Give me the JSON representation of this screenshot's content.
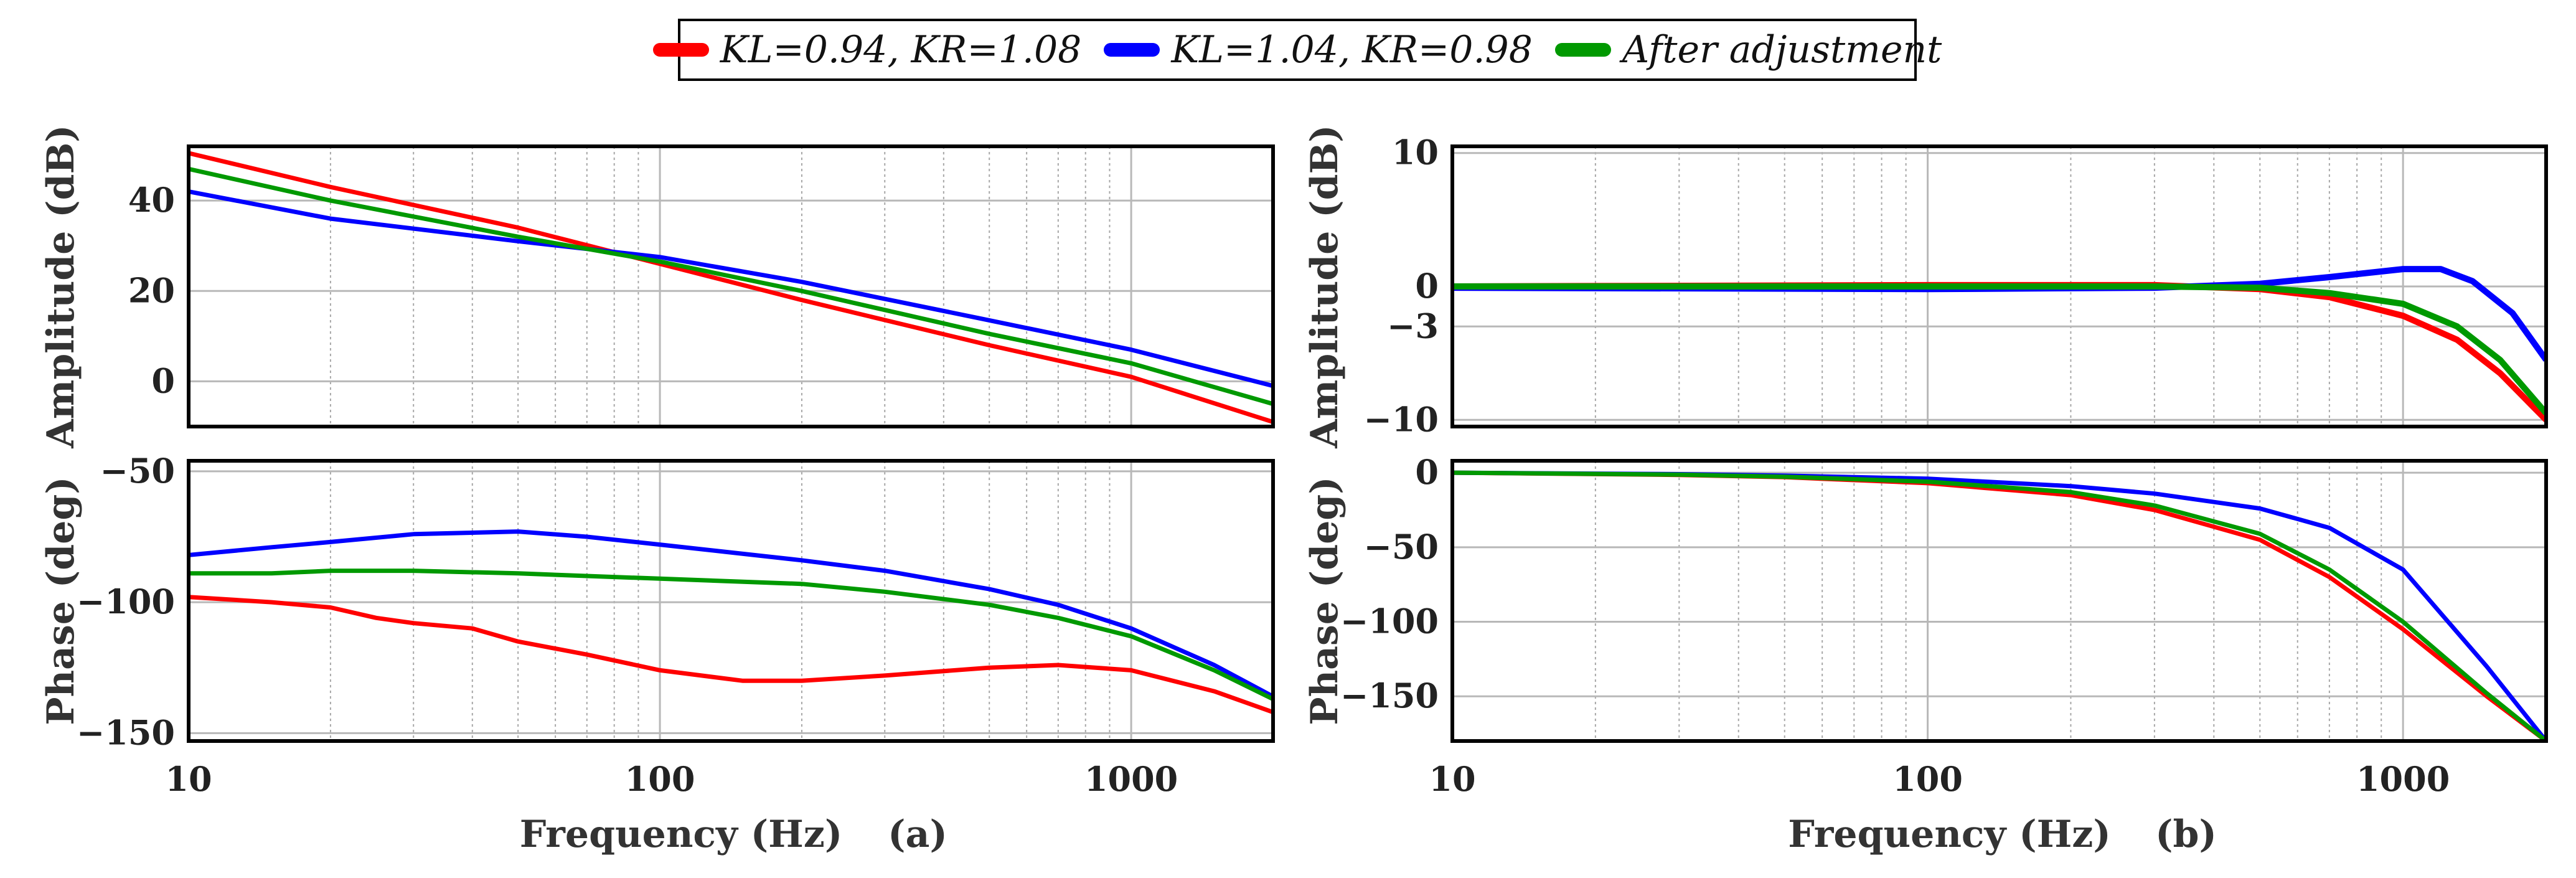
{
  "legend": {
    "items": [
      {
        "label": "KL=0.94, KR=1.08",
        "color": "#ff0000"
      },
      {
        "label": "KL=1.04, KR=0.98",
        "color": "#0000ff"
      },
      {
        "label": "After adjustment",
        "color": "#009900"
      }
    ]
  },
  "chart_data": [
    {
      "id": "a-amplitude",
      "type": "line",
      "panel": "(a)",
      "xscale": "log",
      "xlim": [
        10,
        2000
      ],
      "ylim": [
        -10,
        52
      ],
      "ylabel": "Amplitude (dB)",
      "yticks": [
        0,
        20,
        40
      ],
      "xticks": [
        10,
        100,
        1000
      ],
      "series": [
        {
          "name": "KL=0.94, KR=1.08",
          "color": "#ff0000",
          "x": [
            10,
            20,
            50,
            100,
            200,
            500,
            1000,
            2000
          ],
          "y": [
            50.5,
            43,
            34,
            26,
            18,
            8,
            1,
            -9
          ]
        },
        {
          "name": "KL=1.04, KR=0.98",
          "color": "#0000ff",
          "x": [
            10,
            20,
            50,
            100,
            200,
            500,
            1000,
            2000
          ],
          "y": [
            42,
            36,
            31,
            27.5,
            22,
            13.5,
            7,
            -1
          ]
        },
        {
          "name": "After adjustment",
          "color": "#009900",
          "x": [
            10,
            20,
            50,
            100,
            200,
            500,
            1000,
            2000
          ],
          "y": [
            47,
            40,
            32,
            26.5,
            20,
            10.5,
            4,
            -5
          ]
        }
      ]
    },
    {
      "id": "a-phase",
      "type": "line",
      "panel": "(a)",
      "xscale": "log",
      "xlim": [
        10,
        2000
      ],
      "ylim": [
        -153,
        -46
      ],
      "ylabel": "Phase (deg)",
      "yticks": [
        -150,
        -100,
        -50
      ],
      "xticks": [
        10,
        100,
        1000
      ],
      "xtick_labels": [
        "10",
        "100",
        "1000"
      ],
      "xlabel": "Frequency (Hz)",
      "series": [
        {
          "name": "KL=0.94, KR=1.08",
          "color": "#ff0000",
          "x": [
            10,
            15,
            20,
            25,
            30,
            40,
            50,
            70,
            100,
            150,
            200,
            300,
            500,
            700,
            1000,
            1500,
            2000
          ],
          "y": [
            -98,
            -100,
            -102,
            -106,
            -108,
            -110,
            -115,
            -120,
            -126,
            -130,
            -130,
            -128,
            -125,
            -124,
            -126,
            -134,
            -142
          ]
        },
        {
          "name": "KL=1.04, KR=0.98",
          "color": "#0000ff",
          "x": [
            10,
            15,
            20,
            30,
            50,
            70,
            100,
            200,
            300,
            500,
            700,
            1000,
            1500,
            2000
          ],
          "y": [
            -82,
            -79,
            -77,
            -74,
            -73,
            -75,
            -78,
            -84,
            -88,
            -95,
            -101,
            -110,
            -124,
            -136
          ]
        },
        {
          "name": "After adjustment",
          "color": "#009900",
          "x": [
            10,
            15,
            20,
            30,
            50,
            70,
            100,
            200,
            300,
            500,
            700,
            1000,
            1500,
            2000
          ],
          "y": [
            -89,
            -89,
            -88,
            -88,
            -89,
            -90,
            -91,
            -93,
            -96,
            -101,
            -106,
            -113,
            -126,
            -137
          ]
        }
      ]
    },
    {
      "id": "b-amplitude",
      "type": "line",
      "panel": "(b)",
      "xscale": "log",
      "xlim": [
        10,
        2000
      ],
      "ylim": [
        -10.5,
        10.5
      ],
      "ylabel": "Amplitude (dB)",
      "yticks": [
        -10,
        -3,
        0,
        10
      ],
      "xticks": [
        10,
        100,
        1000
      ],
      "series": [
        {
          "name": "KL=0.94, KR=1.08",
          "color": "#ff0000",
          "x": [
            10,
            100,
            300,
            500,
            700,
            1000,
            1300,
            1600,
            2000
          ],
          "y": [
            0,
            0.1,
            0.1,
            -0.2,
            -0.8,
            -2.2,
            -4,
            -6.5,
            -10
          ]
        },
        {
          "name": "KL=1.04, KR=0.98",
          "color": "#0000ff",
          "x": [
            10,
            100,
            300,
            500,
            700,
            1000,
            1200,
            1400,
            1700,
            2000
          ],
          "y": [
            -0.1,
            -0.2,
            -0.1,
            0.2,
            0.7,
            1.3,
            1.3,
            0.4,
            -2,
            -5.5
          ]
        },
        {
          "name": "After adjustment",
          "color": "#009900",
          "x": [
            10,
            100,
            300,
            500,
            700,
            1000,
            1300,
            1600,
            2000
          ],
          "y": [
            0,
            0,
            0,
            -0.1,
            -0.5,
            -1.3,
            -3,
            -5.5,
            -9.5
          ]
        }
      ]
    },
    {
      "id": "b-phase",
      "type": "line",
      "panel": "(b)",
      "xscale": "log",
      "xlim": [
        10,
        2000
      ],
      "ylim": [
        -180,
        8
      ],
      "ylabel": "Phase (deg)",
      "yticks": [
        -150,
        -100,
        -50,
        0
      ],
      "xticks": [
        10,
        100,
        1000
      ],
      "xtick_labels": [
        "10",
        "100",
        "1000"
      ],
      "xlabel": "Frequency (Hz)",
      "series": [
        {
          "name": "KL=0.94, KR=1.08",
          "color": "#ff0000",
          "x": [
            10,
            30,
            50,
            100,
            200,
            300,
            500,
            700,
            1000,
            1500,
            2000
          ],
          "y": [
            0,
            -1.5,
            -3,
            -7,
            -15,
            -25,
            -45,
            -70,
            -105,
            -150,
            -180
          ]
        },
        {
          "name": "KL=1.04, KR=0.98",
          "color": "#0000ff",
          "x": [
            10,
            30,
            50,
            100,
            200,
            300,
            500,
            700,
            1000,
            1500,
            2000
          ],
          "y": [
            0,
            -1,
            -2,
            -4,
            -9,
            -14,
            -24,
            -37,
            -65,
            -130,
            -180
          ]
        },
        {
          "name": "After adjustment",
          "color": "#009900",
          "x": [
            10,
            30,
            50,
            100,
            200,
            300,
            500,
            700,
            1000,
            1500,
            2000
          ],
          "y": [
            0,
            -1.3,
            -2.7,
            -6,
            -13,
            -22,
            -41,
            -65,
            -100,
            -148,
            -180
          ]
        }
      ]
    }
  ],
  "captions": {
    "a": "(a)",
    "b": "(b)"
  }
}
